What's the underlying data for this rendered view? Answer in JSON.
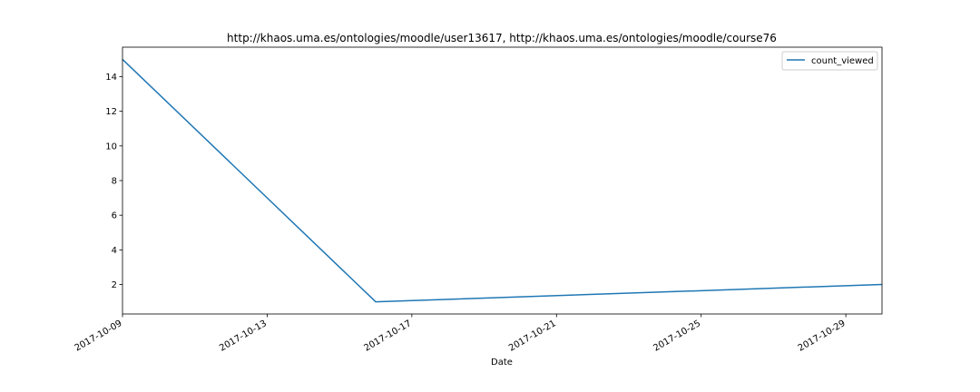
{
  "chart_data": {
    "type": "line",
    "title": "http://khaos.uma.es/ontologies/moodle/user13617, http://khaos.uma.es/ontologies/moodle/course76",
    "xlabel": "Date",
    "ylabel": "",
    "x_axis_type": "date",
    "xlim": [
      "2017-10-09",
      "2017-10-30"
    ],
    "ylim": [
      0.3,
      15.7
    ],
    "x_ticks": [
      "2017-10-09",
      "2017-10-13",
      "2017-10-17",
      "2017-10-21",
      "2017-10-25",
      "2017-10-29"
    ],
    "y_ticks": [
      2,
      4,
      6,
      8,
      10,
      12,
      14
    ],
    "x_tick_rotation": "30deg",
    "grid": false,
    "legend_position": "top-right",
    "series": [
      {
        "name": "count_viewed",
        "color": "#1f77b4",
        "points": [
          {
            "x": "2017-10-09",
            "y": 15
          },
          {
            "x": "2017-10-16",
            "y": 1
          },
          {
            "x": "2017-10-30",
            "y": 2
          }
        ]
      }
    ]
  }
}
